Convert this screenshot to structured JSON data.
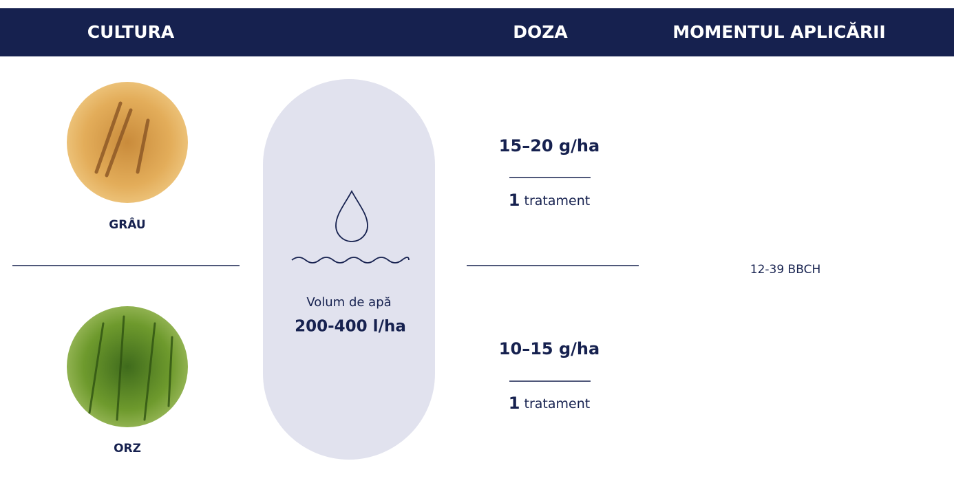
{
  "header": {
    "columns": [
      "CULTURA",
      "DOZA",
      "MOMENTUL APLICĂRII"
    ]
  },
  "crops": [
    {
      "name": "GRÂU"
    },
    {
      "name": "ORZ"
    }
  ],
  "water": {
    "label": "Volum de apă",
    "value": "200-400 l/ha"
  },
  "doses": [
    {
      "amount": "15–20 g/ha",
      "treatments": {
        "count": "1",
        "unit": "tratament"
      }
    },
    {
      "amount": "10–15 g/ha",
      "treatments": {
        "count": "1",
        "unit": "tratament"
      }
    }
  ],
  "timing": "12-39 BBCH"
}
